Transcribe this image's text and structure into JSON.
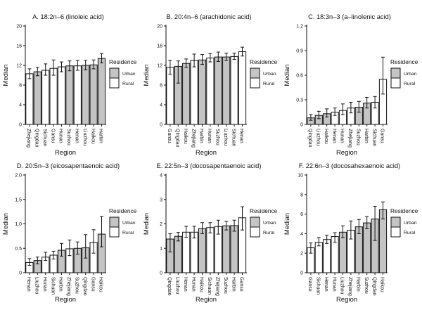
{
  "figure": {
    "background": "#ffffff",
    "colors": {
      "urban_fill": "#c4c4c4",
      "rural_fill": "#ffffff",
      "axis": "#111111",
      "text": "#111111"
    },
    "legend": {
      "title": "Residence",
      "position": "right",
      "items": [
        {
          "label": "Urban",
          "fill": "#c4c4c4"
        },
        {
          "label": "Rural",
          "fill": "#ffffff"
        }
      ]
    }
  },
  "chart_data": [
    {
      "type": "bar",
      "panel": "A",
      "title": "A. 18:2n–6 (linoleic acid)",
      "xlabel": "Region",
      "ylabel": "Median",
      "ylim": [
        0,
        20
      ],
      "yticks": [
        0,
        4,
        8,
        12,
        16,
        20
      ],
      "ytick_labels": [
        "0",
        "4",
        "8",
        "12",
        "16",
        "20"
      ],
      "grid": false,
      "legend_position": "right",
      "categories": [
        "Zhejiang",
        "Qingdao",
        "Sichuan",
        "Gansu",
        "Hunan",
        "Suzhou",
        "Henan",
        "Liuzhou",
        "Haikou",
        "Harbin"
      ],
      "residence": [
        "Rural",
        "Urban",
        "Rural",
        "Rural",
        "Rural",
        "Urban",
        "Rural",
        "Urban",
        "Urban",
        "Urban"
      ],
      "values": [
        10.3,
        10.7,
        11.0,
        11.4,
        11.7,
        11.9,
        11.9,
        12.0,
        12.1,
        13.4
      ],
      "error_low": [
        9.3,
        9.9,
        10.0,
        10.0,
        10.7,
        10.9,
        11.0,
        11.1,
        11.3,
        12.5
      ],
      "error_high": [
        11.3,
        11.6,
        12.3,
        13.1,
        12.7,
        12.9,
        13.0,
        13.0,
        13.1,
        14.4
      ]
    },
    {
      "type": "bar",
      "panel": "B",
      "title": "B. 20:4n–6 (arachidonic acid)",
      "xlabel": "Region",
      "ylabel": "Median",
      "ylim": [
        0,
        20
      ],
      "yticks": [
        0,
        4,
        8,
        12,
        16,
        20
      ],
      "ytick_labels": [
        "0",
        "4",
        "8",
        "12",
        "16",
        "20"
      ],
      "grid": false,
      "legend_position": "right",
      "categories": [
        "Gansu",
        "Qingdao",
        "Haikou",
        "Zhejiang",
        "Harbin",
        "Hunan",
        "Suzhou",
        "Liuzhou",
        "Sichuan",
        "Henan"
      ],
      "residence": [
        "Rural",
        "Urban",
        "Urban",
        "Rural",
        "Urban",
        "Rural",
        "Urban",
        "Urban",
        "Rural",
        "Rural"
      ],
      "values": [
        11.6,
        11.8,
        12.4,
        13.0,
        13.1,
        13.5,
        13.7,
        13.7,
        13.8,
        14.8
      ],
      "error_low": [
        10.2,
        8.4,
        11.6,
        11.7,
        12.2,
        12.7,
        12.8,
        13.0,
        13.2,
        13.9
      ],
      "error_high": [
        13.0,
        12.9,
        13.3,
        14.3,
        14.2,
        14.4,
        14.7,
        14.5,
        14.5,
        15.7
      ]
    },
    {
      "type": "bar",
      "panel": "C",
      "title": "C. 18:3n–3 (a–linolenic acid)",
      "xlabel": "Region",
      "ylabel": "Median",
      "ylim": [
        0,
        1.2
      ],
      "yticks": [
        0,
        0.3,
        0.6,
        0.9,
        1.2
      ],
      "ytick_labels": [
        "0",
        "0.3",
        "0.6",
        "0.9",
        "1.2"
      ],
      "grid": false,
      "legend_position": "right",
      "categories": [
        "Qingdao",
        "Liuzhou",
        "Haikou",
        "Henan",
        "Hunan",
        "Zhejiang",
        "Suzhou",
        "Harbin",
        "Sichuan",
        "Gansu"
      ],
      "residence": [
        "Urban",
        "Urban",
        "Urban",
        "Rural",
        "Rural",
        "Rural",
        "Urban",
        "Urban",
        "Rural",
        "Rural"
      ],
      "values": [
        0.08,
        0.11,
        0.13,
        0.15,
        0.17,
        0.2,
        0.21,
        0.26,
        0.27,
        0.55
      ],
      "error_low": [
        0.05,
        0.07,
        0.09,
        0.11,
        0.12,
        0.14,
        0.15,
        0.2,
        0.2,
        0.37
      ],
      "error_high": [
        0.12,
        0.16,
        0.19,
        0.2,
        0.25,
        0.27,
        0.28,
        0.33,
        0.34,
        0.82
      ]
    },
    {
      "type": "bar",
      "panel": "D",
      "title": "D. 20:5n–3 (eicosapentaenoic acid)",
      "xlabel": "Region",
      "ylabel": "Median",
      "ylim": [
        0,
        2.0
      ],
      "yticks": [
        0,
        0.5,
        1.0,
        1.5,
        2.0
      ],
      "ytick_labels": [
        "0",
        "0.5",
        "1.0",
        "1.5",
        "2.0"
      ],
      "grid": false,
      "legend_position": "right",
      "categories": [
        "Henan",
        "Liuzhou",
        "Hunan",
        "Sichuan",
        "Harbin",
        "Zhejiang",
        "Suzhou",
        "Qingdao",
        "Gansu",
        "Haikou"
      ],
      "residence": [
        "Rural",
        "Urban",
        "Rural",
        "Rural",
        "Urban",
        "Rural",
        "Urban",
        "Urban",
        "Rural",
        "Urban"
      ],
      "values": [
        0.21,
        0.25,
        0.32,
        0.36,
        0.46,
        0.49,
        0.5,
        0.51,
        0.62,
        0.79
      ],
      "error_low": [
        0.15,
        0.18,
        0.25,
        0.28,
        0.34,
        0.35,
        0.38,
        0.3,
        0.4,
        0.53
      ],
      "error_high": [
        0.29,
        0.32,
        0.42,
        0.44,
        0.6,
        0.67,
        0.63,
        0.78,
        0.88,
        1.15
      ]
    },
    {
      "type": "bar",
      "panel": "E",
      "title": "E. 22:5n–3 (docosapentaenoic acid)",
      "xlabel": "Region",
      "ylabel": "Median",
      "ylim": [
        0,
        4
      ],
      "yticks": [
        0,
        1,
        2,
        3,
        4
      ],
      "ytick_labels": [
        "0",
        "1",
        "2",
        "3",
        "4"
      ],
      "grid": false,
      "legend_position": "right",
      "categories": [
        "Qingdao",
        "Liuzhou",
        "Henan",
        "Hunan",
        "Haikou",
        "Sichuan",
        "Zhejiang",
        "Suzhou",
        "Harbin",
        "Gansu"
      ],
      "residence": [
        "Urban",
        "Urban",
        "Rural",
        "Rural",
        "Urban",
        "Rural",
        "Rural",
        "Urban",
        "Urban",
        "Rural"
      ],
      "values": [
        1.38,
        1.49,
        1.66,
        1.66,
        1.81,
        1.85,
        1.89,
        1.92,
        1.93,
        2.25
      ],
      "error_low": [
        0.85,
        1.3,
        1.45,
        1.42,
        1.6,
        1.63,
        1.58,
        1.75,
        1.7,
        1.75
      ],
      "error_high": [
        1.6,
        1.65,
        1.9,
        1.9,
        2.05,
        2.05,
        2.15,
        2.1,
        2.15,
        2.7
      ]
    },
    {
      "type": "bar",
      "panel": "F",
      "title": "F. 22:6n–3 (docosahexaenoic acid)",
      "xlabel": "Region",
      "ylabel": "Median",
      "ylim": [
        0,
        10
      ],
      "yticks": [
        0,
        2,
        4,
        6,
        8,
        10
      ],
      "ytick_labels": [
        "0",
        "2",
        "4",
        "6",
        "8",
        "10"
      ],
      "grid": false,
      "legend_position": "right",
      "categories": [
        "Gansu",
        "Sichuan",
        "Henan",
        "Hunan",
        "Liuzhou",
        "Zhejiang",
        "Harbin",
        "Suzhou",
        "Qingdao",
        "Haikou"
      ],
      "residence": [
        "Rural",
        "Rural",
        "Rural",
        "Rural",
        "Urban",
        "Rural",
        "Urban",
        "Urban",
        "Urban",
        "Urban"
      ],
      "values": [
        2.55,
        3.1,
        3.4,
        3.7,
        4.15,
        4.35,
        4.7,
        5.1,
        5.5,
        6.45
      ],
      "error_low": [
        2.0,
        2.75,
        3.0,
        3.1,
        3.6,
        3.45,
        4.0,
        4.5,
        3.3,
        5.5
      ],
      "error_high": [
        3.05,
        3.6,
        3.85,
        4.1,
        4.8,
        5.3,
        5.45,
        5.75,
        6.8,
        7.25
      ]
    }
  ]
}
